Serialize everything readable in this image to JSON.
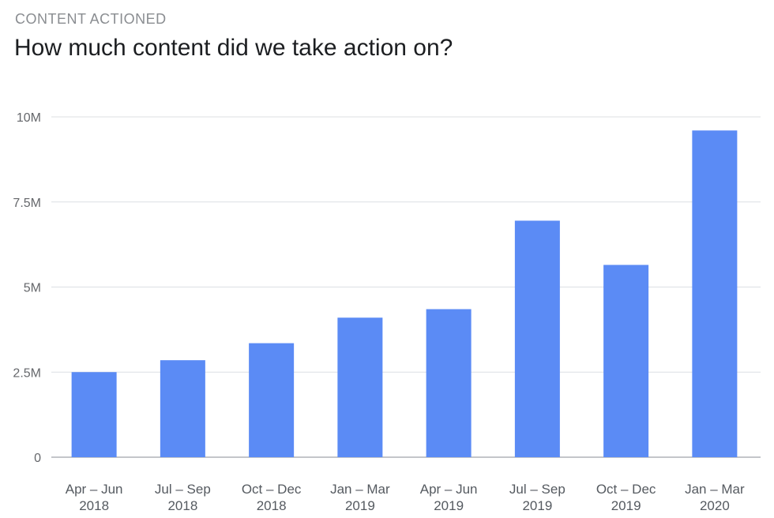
{
  "header": {
    "eyebrow": "CONTENT ACTIONED",
    "title": "How much content did we take action on?"
  },
  "colors": {
    "bar": "#5b8bf5",
    "grid": "#dcdfe3",
    "axis": "#b0b3b8"
  },
  "chart_data": {
    "type": "bar",
    "title": "How much content did we take action on?",
    "xlabel": "",
    "ylabel": "",
    "ylim": [
      0,
      10000000
    ],
    "grid": true,
    "yticks": [
      {
        "value": 0,
        "label": "0"
      },
      {
        "value": 2500000,
        "label": "2.5M"
      },
      {
        "value": 5000000,
        "label": "5M"
      },
      {
        "value": 7500000,
        "label": "7.5M"
      },
      {
        "value": 10000000,
        "label": "10M"
      }
    ],
    "categories": [
      [
        "Apr – Jun",
        "2018"
      ],
      [
        "Jul – Sep",
        "2018"
      ],
      [
        "Oct – Dec",
        "2018"
      ],
      [
        "Jan – Mar",
        "2019"
      ],
      [
        "Apr – Jun",
        "2019"
      ],
      [
        "Jul – Sep",
        "2019"
      ],
      [
        "Oct – Dec",
        "2019"
      ],
      [
        "Jan – Mar",
        "2020"
      ]
    ],
    "values": [
      2500000,
      2850000,
      3350000,
      4100000,
      4350000,
      6950000,
      5650000,
      9600000
    ]
  }
}
